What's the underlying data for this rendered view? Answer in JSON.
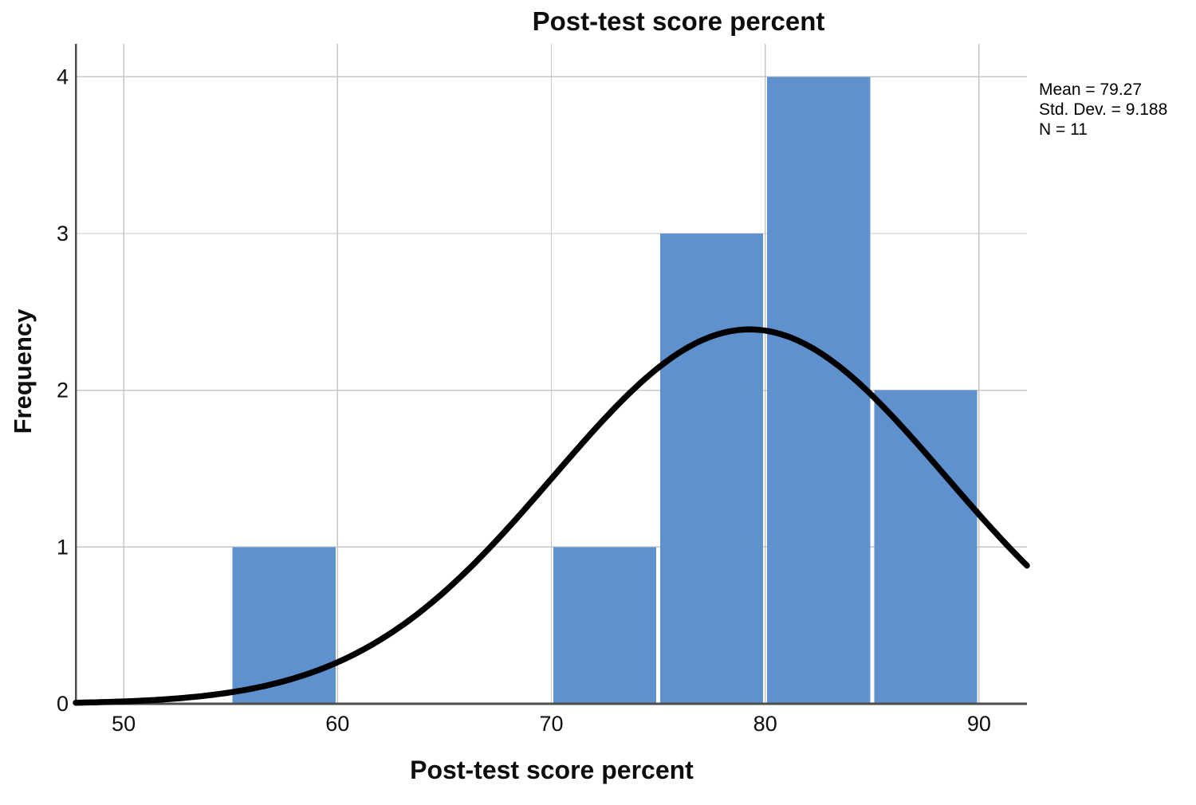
{
  "figure": {
    "title": "Post-test score percent",
    "x_axis_label": "Post-test score percent",
    "y_axis_label": "Frequency"
  },
  "stats": {
    "lines": [
      "Mean = 79.27",
      "Std. Dev. = 9.188",
      "N = 11"
    ]
  },
  "chart_data": {
    "type": "bar",
    "subtype": "histogram-with-normal-curve",
    "title": "Post-test score percent",
    "xlabel": "Post-test score percent",
    "ylabel": "Frequency",
    "bins": [
      {
        "from": 55,
        "to": 60,
        "frequency": 1
      },
      {
        "from": 70,
        "to": 75,
        "frequency": 1
      },
      {
        "from": 75,
        "to": 80,
        "frequency": 3
      },
      {
        "from": 80,
        "to": 85,
        "frequency": 4
      },
      {
        "from": 85,
        "to": 90,
        "frequency": 2
      }
    ],
    "bin_width": 5,
    "x_ticks": [
      50,
      60,
      70,
      80,
      90
    ],
    "y_ticks": [
      0,
      1,
      2,
      3,
      4
    ],
    "xlim": [
      47.76,
      92.24
    ],
    "ylim": [
      0,
      4.21
    ],
    "grid": true,
    "legend": "none",
    "normal_curve": {
      "mean": 79.27,
      "std_dev": 9.188,
      "n": 11
    },
    "annotation_lines": [
      "Mean = 79.27",
      "Std. Dev. = 9.188",
      "N = 11"
    ],
    "colors": {
      "bar": "#5e91cd",
      "curve": "#000000",
      "grid": "#c7c7c7",
      "axis": "#4d4d4d",
      "text": "#0d0d0d",
      "background": "#ffffff"
    }
  }
}
